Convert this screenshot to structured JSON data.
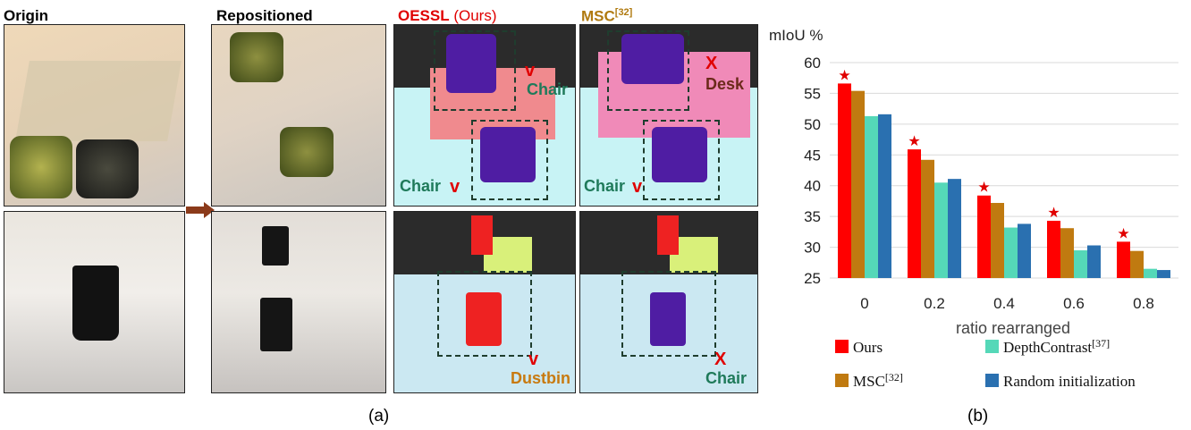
{
  "headers": {
    "origin": "Origin",
    "repositioned": "Repositioned",
    "oessl": "OESSL",
    "oessl_suffix": " (Ours)",
    "msc": "MSC",
    "msc_ref": "[32]"
  },
  "panel_labels": {
    "top_oessl_mark": "v",
    "top_oessl_label": "Chair",
    "top_oessl_left_label": "Chair",
    "top_oessl_left_mark": "v",
    "top_msc_mark": "X",
    "top_msc_label": "Desk",
    "top_msc_left_label": "Chair",
    "top_msc_left_mark": "v",
    "bottom_oessl_mark": "v",
    "bottom_oessl_label": "Dustbin",
    "bottom_msc_mark": "X",
    "bottom_msc_label": "Chair"
  },
  "subcaptions": {
    "a": "(a)",
    "b": "(b)"
  },
  "colors": {
    "ours": "#ff0000",
    "msc": "#c07a10",
    "depthcontrast": "#55d8b8",
    "random": "#2a70b0",
    "star": "#e00000",
    "arrow": "#8b3a1a"
  },
  "chart_data": {
    "type": "bar",
    "ylabel": "mIoU %",
    "xlabel": "ratio rearranged",
    "categories": [
      "0",
      "0.2",
      "0.4",
      "0.6",
      "0.8"
    ],
    "ylim": [
      25,
      60
    ],
    "yticks": [
      25,
      30,
      35,
      40,
      45,
      50,
      55,
      60
    ],
    "grid": true,
    "legend_position": "bottom",
    "series": [
      {
        "name": "Ours",
        "legend_ref": "",
        "values": [
          56.6,
          45.9,
          38.4,
          34.3,
          30.9
        ]
      },
      {
        "name": "MSC",
        "legend_ref": "[32]",
        "values": [
          55.4,
          44.2,
          37.2,
          33.1,
          29.4
        ]
      },
      {
        "name": "DepthContrast",
        "legend_ref": "[37]",
        "values": [
          51.3,
          40.5,
          33.2,
          29.5,
          26.5
        ]
      },
      {
        "name": "Random initialization",
        "legend_ref": "",
        "values": [
          51.6,
          41.1,
          33.8,
          30.3,
          26.3
        ]
      }
    ],
    "star_series": "Ours",
    "star_symbol": "★"
  }
}
